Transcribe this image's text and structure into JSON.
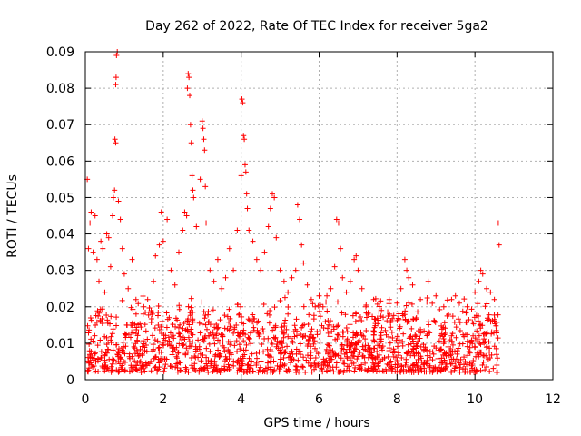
{
  "chart_data": {
    "type": "scatter",
    "title": "Day 262 of 2022, Rate Of TEC Index for receiver 5ga2",
    "xlabel": "GPS time / hours",
    "ylabel": "ROTI / TECUs",
    "xlim": [
      0,
      12
    ],
    "ylim": [
      0,
      0.09
    ],
    "xticks": [
      "0",
      "2",
      "4",
      "6",
      "8",
      "10",
      "12"
    ],
    "yticks": [
      "0",
      "0.01",
      "0.02",
      "0.03",
      "0.04",
      "0.05",
      "0.06",
      "0.07",
      "0.08",
      "0.09"
    ],
    "grid": true,
    "marker": "plus",
    "color": "#ff0000",
    "data_extent_hours": [
      0.05,
      10.6
    ],
    "series": [
      {
        "name": "ROTI",
        "points": [
          [
            0.05,
            0.055
          ],
          [
            0.08,
            0.036
          ],
          [
            0.12,
            0.043
          ],
          [
            0.15,
            0.046
          ],
          [
            0.2,
            0.035
          ],
          [
            0.25,
            0.045
          ],
          [
            0.3,
            0.033
          ],
          [
            0.35,
            0.027
          ],
          [
            0.4,
            0.038
          ],
          [
            0.45,
            0.036
          ],
          [
            0.5,
            0.024
          ],
          [
            0.55,
            0.04
          ],
          [
            0.6,
            0.039
          ],
          [
            0.65,
            0.031
          ],
          [
            0.7,
            0.045
          ],
          [
            0.72,
            0.05
          ],
          [
            0.75,
            0.052
          ],
          [
            0.76,
            0.066
          ],
          [
            0.78,
            0.065
          ],
          [
            0.78,
            0.081
          ],
          [
            0.79,
            0.083
          ],
          [
            0.8,
            0.089
          ],
          [
            0.82,
            0.09
          ],
          [
            0.85,
            0.049
          ],
          [
            0.9,
            0.044
          ],
          [
            0.95,
            0.036
          ],
          [
            1.0,
            0.029
          ],
          [
            1.1,
            0.025
          ],
          [
            1.2,
            0.033
          ],
          [
            1.3,
            0.022
          ],
          [
            1.5,
            0.02
          ],
          [
            1.6,
            0.022
          ],
          [
            1.75,
            0.027
          ],
          [
            1.8,
            0.034
          ],
          [
            1.9,
            0.037
          ],
          [
            1.95,
            0.046
          ],
          [
            2.0,
            0.038
          ],
          [
            2.1,
            0.044
          ],
          [
            2.2,
            0.03
          ],
          [
            2.3,
            0.026
          ],
          [
            2.4,
            0.035
          ],
          [
            2.5,
            0.041
          ],
          [
            2.55,
            0.046
          ],
          [
            2.6,
            0.045
          ],
          [
            2.62,
            0.08
          ],
          [
            2.64,
            0.084
          ],
          [
            2.66,
            0.083
          ],
          [
            2.68,
            0.078
          ],
          [
            2.7,
            0.07
          ],
          [
            2.72,
            0.065
          ],
          [
            2.74,
            0.056
          ],
          [
            2.76,
            0.052
          ],
          [
            2.78,
            0.05
          ],
          [
            2.85,
            0.042
          ],
          [
            2.95,
            0.055
          ],
          [
            3.0,
            0.071
          ],
          [
            3.02,
            0.069
          ],
          [
            3.04,
            0.066
          ],
          [
            3.06,
            0.063
          ],
          [
            3.08,
            0.053
          ],
          [
            3.1,
            0.043
          ],
          [
            3.2,
            0.03
          ],
          [
            3.3,
            0.027
          ],
          [
            3.4,
            0.033
          ],
          [
            3.5,
            0.025
          ],
          [
            3.6,
            0.028
          ],
          [
            3.7,
            0.036
          ],
          [
            3.8,
            0.03
          ],
          [
            3.9,
            0.041
          ],
          [
            4.0,
            0.056
          ],
          [
            4.02,
            0.077
          ],
          [
            4.04,
            0.076
          ],
          [
            4.06,
            0.067
          ],
          [
            4.08,
            0.066
          ],
          [
            4.1,
            0.059
          ],
          [
            4.12,
            0.057
          ],
          [
            4.14,
            0.051
          ],
          [
            4.16,
            0.047
          ],
          [
            4.2,
            0.041
          ],
          [
            4.3,
            0.038
          ],
          [
            4.4,
            0.033
          ],
          [
            4.5,
            0.03
          ],
          [
            4.6,
            0.035
          ],
          [
            4.7,
            0.042
          ],
          [
            4.75,
            0.047
          ],
          [
            4.8,
            0.051
          ],
          [
            4.85,
            0.05
          ],
          [
            4.9,
            0.039
          ],
          [
            5.0,
            0.03
          ],
          [
            5.1,
            0.027
          ],
          [
            5.2,
            0.024
          ],
          [
            5.3,
            0.028
          ],
          [
            5.4,
            0.03
          ],
          [
            5.45,
            0.048
          ],
          [
            5.5,
            0.044
          ],
          [
            5.55,
            0.037
          ],
          [
            5.6,
            0.032
          ],
          [
            5.7,
            0.026
          ],
          [
            5.8,
            0.022
          ],
          [
            5.9,
            0.02
          ],
          [
            6.0,
            0.023
          ],
          [
            6.1,
            0.02
          ],
          [
            6.2,
            0.023
          ],
          [
            6.3,
            0.025
          ],
          [
            6.4,
            0.031
          ],
          [
            6.45,
            0.044
          ],
          [
            6.5,
            0.043
          ],
          [
            6.55,
            0.036
          ],
          [
            6.6,
            0.028
          ],
          [
            6.7,
            0.024
          ],
          [
            6.8,
            0.027
          ],
          [
            6.9,
            0.033
          ],
          [
            6.95,
            0.034
          ],
          [
            7.0,
            0.03
          ],
          [
            7.1,
            0.025
          ],
          [
            7.2,
            0.02
          ],
          [
            7.4,
            0.022
          ],
          [
            7.6,
            0.019
          ],
          [
            7.8,
            0.022
          ],
          [
            8.0,
            0.021
          ],
          [
            8.1,
            0.025
          ],
          [
            8.2,
            0.033
          ],
          [
            8.25,
            0.03
          ],
          [
            8.3,
            0.028
          ],
          [
            8.4,
            0.026
          ],
          [
            8.6,
            0.022
          ],
          [
            8.8,
            0.027
          ],
          [
            9.0,
            0.023
          ],
          [
            9.2,
            0.02
          ],
          [
            9.4,
            0.022
          ],
          [
            9.5,
            0.023
          ],
          [
            9.6,
            0.021
          ],
          [
            9.8,
            0.02
          ],
          [
            10.0,
            0.024
          ],
          [
            10.1,
            0.027
          ],
          [
            10.15,
            0.03
          ],
          [
            10.2,
            0.029
          ],
          [
            10.3,
            0.025
          ],
          [
            10.4,
            0.024
          ],
          [
            10.5,
            0.022
          ],
          [
            10.6,
            0.043
          ],
          [
            10.62,
            0.037
          ]
        ],
        "band": {
          "description": "dense cloud of points between about 0.003 and 0.02 across the whole time range",
          "low_min": 0.002,
          "low_max": 0.008,
          "high_typical": 0.02,
          "count_per_hour": 140
        }
      }
    ]
  }
}
